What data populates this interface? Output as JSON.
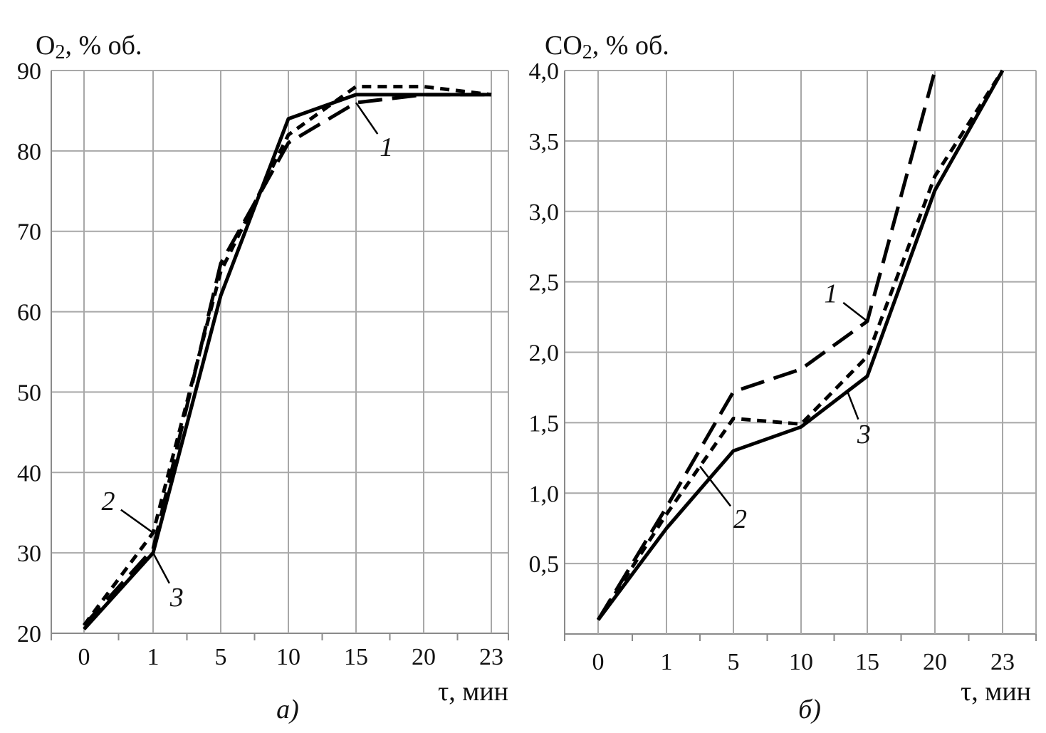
{
  "chart_data": [
    {
      "type": "line",
      "panel": "a",
      "caption": "а)",
      "ylabel_main": "O",
      "ylabel_sub": "2",
      "ylabel_rest": ", % об.",
      "xlabel": "τ, мин",
      "categories": [
        "0",
        "1",
        "5",
        "10",
        "15",
        "20",
        "23"
      ],
      "ylim": [
        20,
        90
      ],
      "yticks": [
        "20",
        "30",
        "40",
        "50",
        "60",
        "70",
        "80",
        "90"
      ],
      "ytick_values": [
        20,
        30,
        40,
        50,
        60,
        70,
        80,
        90
      ],
      "grid": true,
      "series": [
        {
          "name": "1",
          "style": "long-dash",
          "values": [
            21,
            30.5,
            66,
            81,
            86,
            87,
            87
          ]
        },
        {
          "name": "2",
          "style": "short-dash",
          "values": [
            21,
            32.5,
            65,
            82,
            88,
            88,
            87
          ]
        },
        {
          "name": "3",
          "style": "solid",
          "values": [
            20.5,
            30,
            62,
            84,
            87,
            87,
            87
          ]
        }
      ],
      "annotations": [
        {
          "text": "1",
          "series": "1",
          "point_index": 4,
          "label_x_index": 4.45,
          "label_y": 80.5
        },
        {
          "text": "2",
          "series": "2",
          "point_index": 1,
          "label_x_index": 0.35,
          "label_y": 36.5
        },
        {
          "text": "3",
          "series": "3",
          "point_index": 1,
          "label_x_index": 1.35,
          "label_y": 24.5
        }
      ]
    },
    {
      "type": "line",
      "panel": "b",
      "caption": "б)",
      "ylabel_main": "CO",
      "ylabel_sub": "2",
      "ylabel_rest": ", % об.",
      "xlabel": "τ, мин",
      "categories": [
        "0",
        "1",
        "5",
        "10",
        "15",
        "20",
        "23"
      ],
      "ylim": [
        0,
        4.0
      ],
      "yticks": [
        "0,5",
        "1,0",
        "1,5",
        "2,0",
        "2,5",
        "3,0",
        "3,5",
        "4,0"
      ],
      "ytick_values": [
        0.5,
        1.0,
        1.5,
        2.0,
        2.5,
        3.0,
        3.5,
        4.0
      ],
      "grid": true,
      "series": [
        {
          "name": "1",
          "style": "long-dash",
          "values": [
            0.1,
            0.9,
            1.72,
            1.88,
            2.22,
            4.0,
            null
          ]
        },
        {
          "name": "2",
          "style": "short-dash",
          "values": [
            0.1,
            0.85,
            1.53,
            1.49,
            1.97,
            3.25,
            4.0
          ]
        },
        {
          "name": "3",
          "style": "solid",
          "values": [
            0.1,
            0.75,
            1.3,
            1.47,
            1.83,
            3.15,
            4.0
          ]
        }
      ],
      "annotations": [
        {
          "text": "1",
          "series": "1",
          "point_index": 4,
          "label_x_index": 3.45,
          "label_y": 2.42
        },
        {
          "text": "2",
          "series": "2",
          "point_index": 1.5,
          "label_x_index": 2.1,
          "label_y": 0.82
        },
        {
          "text": "3",
          "series": "3",
          "point_index": 3.7,
          "label_x_index": 3.95,
          "label_y": 1.42
        }
      ]
    }
  ]
}
